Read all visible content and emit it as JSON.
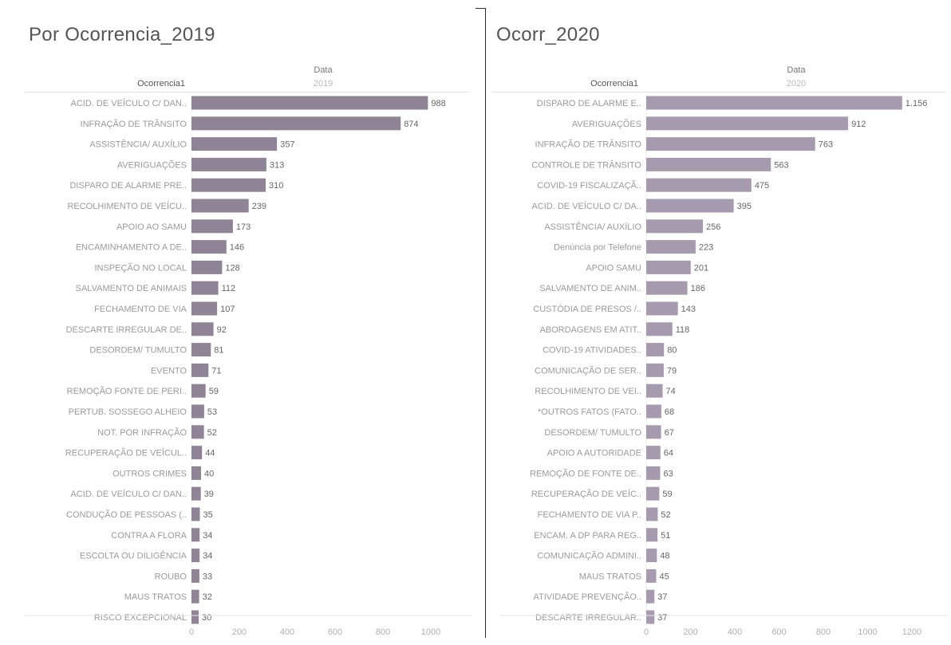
{
  "chart_data": [
    {
      "type": "bar",
      "orientation": "horizontal",
      "title": "Por Ocorrencia_2019",
      "column_header": "Data",
      "column_subheader": "2019",
      "row_header": "Ocorrencia1",
      "xlim": [
        0,
        1000
      ],
      "xticks": [
        "0",
        "200",
        "400",
        "600",
        "800",
        "1000"
      ],
      "bar_color": "#8e8496",
      "categories": [
        "ACID. DE VEÍCULO C/ DAN..",
        "INFRAÇÃO DE TRÂNSITO",
        "ASSISTÊNCIA/ AUXÍLIO",
        "AVERIGUAÇÕES",
        "DISPARO DE ALARME PRE..",
        "RECOLHIMENTO DE VEÍCU..",
        "APOIO AO SAMU",
        "ENCAMINHAMENTO A DE..",
        "INSPEÇÃO NO LOCAL",
        "SALVAMENTO DE ANIMAIS",
        "FECHAMENTO DE VIA",
        "DESCARTE IRREGULAR DE..",
        "DESORDEM/ TUMULTO",
        "EVENTO",
        "REMOÇÃO FONTE DE PERI..",
        "PERTUB. SOSSEGO ALHEIO",
        "NOT. POR INFRAÇÃO",
        "RECUPERAÇÃO DE VEÍCUL..",
        "OUTROS CRIMES",
        "ACID. DE VEÍCULO C/ DAN..",
        "CONDUÇÃO DE PESSOAS (..",
        "CONTRA A FLORA",
        "ESCOLTA OU DILIGÊNCIA",
        "ROUBO",
        "MAUS TRATOS",
        "RISCO EXCEPCIONAL"
      ],
      "values": [
        988,
        874,
        357,
        313,
        310,
        239,
        173,
        146,
        128,
        112,
        107,
        92,
        81,
        71,
        59,
        53,
        52,
        44,
        40,
        39,
        35,
        34,
        34,
        33,
        32,
        30
      ],
      "value_labels": [
        "988",
        "874",
        "357",
        "313",
        "310",
        "239",
        "173",
        "146",
        "128",
        "112",
        "107",
        "92",
        "81",
        "71",
        "59",
        "53",
        "52",
        "44",
        "40",
        "39",
        "35",
        "34",
        "34",
        "33",
        "32",
        "30"
      ]
    },
    {
      "type": "bar",
      "orientation": "horizontal",
      "title": "Ocorr_2020",
      "column_header": "Data",
      "column_subheader": "2020",
      "row_header": "Ocorrencia1",
      "xlim": [
        0,
        1200
      ],
      "xticks": [
        "0",
        "200",
        "400",
        "600",
        "800",
        "1000",
        "1200"
      ],
      "bar_color": "#a69bae",
      "categories": [
        "DISPARO DE ALARME E..",
        "AVERIGUAÇÕES",
        "INFRAÇÃO DE TRÂNSITO",
        "CONTROLE DE TRÂNSITO",
        "COVID-19 FISCALIZAÇÃ..",
        "ACID. DE VEÍCULO C/ DA..",
        "ASSISTÊNCIA/ AUXÍLIO",
        "Denúncia por Telefone",
        "APOIO SAMU",
        "SALVAMENTO DE ANIM..",
        "CUSTÓDIA DE PRESOS /..",
        "ABORDAGENS EM ATIT..",
        "COVID-19 ATIVIDADES..",
        "COMUNICAÇÃO DE SER..",
        "RECOLHIMENTO DE VEI..",
        "*OUTROS FATOS (FATO..",
        "DESORDEM/ TUMULTO",
        "APOIO A AUTORIDADE",
        "REMOÇÃO DE FONTE DE..",
        "RECUPERAÇÃO DE VEÍC..",
        "FECHAMENTO DE VIA P..",
        "ENCAM. A DP PARA REG..",
        "COMUNICAÇÃO ADMINI..",
        "MAUS TRATOS",
        "ATIVIDADE PREVENÇÃO..",
        "DESCARTE IRREGULAR.."
      ],
      "values": [
        1156,
        912,
        763,
        563,
        475,
        395,
        256,
        223,
        201,
        186,
        143,
        118,
        80,
        79,
        74,
        68,
        67,
        64,
        63,
        59,
        52,
        51,
        48,
        45,
        37,
        37
      ],
      "value_labels": [
        "1.156",
        "912",
        "763",
        "563",
        "475",
        "395",
        "256",
        "223",
        "201",
        "186",
        "143",
        "118",
        "80",
        "79",
        "74",
        "68",
        "67",
        "64",
        "63",
        "59",
        "52",
        "51",
        "48",
        "45",
        "37",
        "37"
      ]
    }
  ]
}
